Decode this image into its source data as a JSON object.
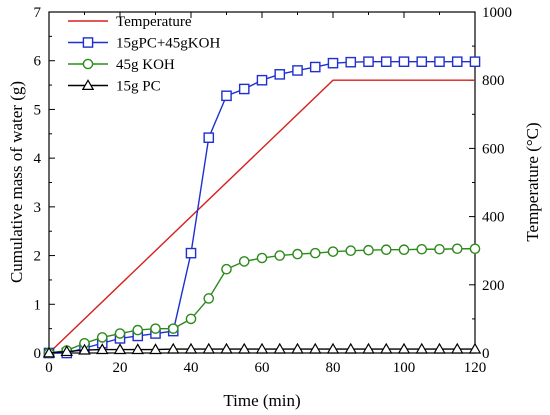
{
  "chart_data": {
    "type": "line",
    "xlabel": "Time (min)",
    "ylabel_left": "Cumulative mass of water (g)",
    "ylabel_right": "Temperature (°C)",
    "xlim": [
      0,
      120
    ],
    "ylim_left": [
      0,
      7
    ],
    "ylim_right": [
      0,
      1000
    ],
    "x_ticks": [
      "0",
      "20",
      "40",
      "60",
      "80",
      "100",
      "120"
    ],
    "y_left_ticks": [
      "0",
      "1",
      "2",
      "3",
      "4",
      "5",
      "6",
      "7"
    ],
    "y_right_ticks": [
      "0",
      "200",
      "400",
      "600",
      "800",
      "1000"
    ],
    "legend_position": "top-left",
    "grid": false,
    "series": [
      {
        "name": "Temperature",
        "axis": "right",
        "marker": "none",
        "color": "#d62020",
        "x": [
          0,
          80,
          120
        ],
        "y": [
          0,
          800,
          800
        ]
      },
      {
        "name": "15gPC+45gKOH",
        "axis": "left",
        "marker": "square",
        "color": "#1f2fd0",
        "x": [
          0,
          5,
          10,
          15,
          20,
          25,
          30,
          35,
          40,
          45,
          50,
          55,
          60,
          65,
          70,
          75,
          80,
          85,
          90,
          95,
          100,
          105,
          110,
          115,
          120
        ],
        "y": [
          0,
          0,
          0.1,
          0.2,
          0.3,
          0.35,
          0.4,
          0.45,
          2.05,
          4.42,
          5.28,
          5.42,
          5.6,
          5.72,
          5.8,
          5.87,
          5.95,
          5.97,
          5.98,
          5.98,
          5.98,
          5.98,
          5.98,
          5.98,
          5.98
        ]
      },
      {
        "name": "45g KOH",
        "axis": "left",
        "marker": "circle",
        "color": "#2e8a1c",
        "x": [
          0,
          5,
          10,
          15,
          20,
          25,
          30,
          35,
          40,
          45,
          50,
          55,
          60,
          65,
          70,
          75,
          80,
          85,
          90,
          95,
          100,
          105,
          110,
          115,
          120
        ],
        "y": [
          0,
          0.05,
          0.2,
          0.32,
          0.4,
          0.47,
          0.5,
          0.5,
          0.7,
          1.12,
          1.72,
          1.88,
          1.95,
          2.0,
          2.03,
          2.05,
          2.08,
          2.1,
          2.11,
          2.12,
          2.12,
          2.13,
          2.13,
          2.14,
          2.14
        ]
      },
      {
        "name": "15g PC",
        "axis": "left",
        "marker": "triangle",
        "color": "#000000",
        "x": [
          0,
          5,
          10,
          15,
          20,
          25,
          30,
          35,
          40,
          45,
          50,
          55,
          60,
          65,
          70,
          75,
          80,
          85,
          90,
          95,
          100,
          105,
          110,
          115,
          120
        ],
        "y": [
          0,
          0.03,
          0.06,
          0.07,
          0.07,
          0.07,
          0.07,
          0.08,
          0.08,
          0.08,
          0.08,
          0.08,
          0.08,
          0.08,
          0.08,
          0.08,
          0.08,
          0.08,
          0.08,
          0.08,
          0.08,
          0.08,
          0.08,
          0.08,
          0.08
        ]
      }
    ]
  }
}
